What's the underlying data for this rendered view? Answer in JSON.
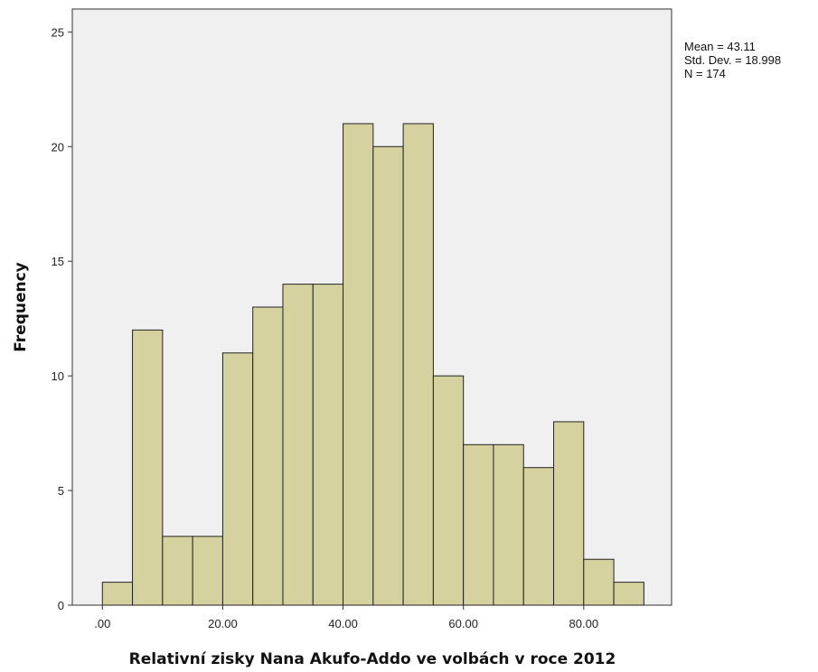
{
  "chart_data": {
    "type": "bar",
    "title": "",
    "xlabel": "Relativní zisky Nana Akufo-Addo ve volbách v roce 2012",
    "ylabel": "Frequency",
    "bin_width": 5,
    "bins": [
      {
        "from": 0,
        "to": 5,
        "count": 1
      },
      {
        "from": 5,
        "to": 10,
        "count": 12
      },
      {
        "from": 10,
        "to": 15,
        "count": 3
      },
      {
        "from": 15,
        "to": 20,
        "count": 3
      },
      {
        "from": 20,
        "to": 25,
        "count": 11
      },
      {
        "from": 25,
        "to": 30,
        "count": 13
      },
      {
        "from": 30,
        "to": 35,
        "count": 14
      },
      {
        "from": 35,
        "to": 40,
        "count": 14
      },
      {
        "from": 40,
        "to": 45,
        "count": 21
      },
      {
        "from": 45,
        "to": 50,
        "count": 20
      },
      {
        "from": 50,
        "to": 55,
        "count": 21
      },
      {
        "from": 55,
        "to": 60,
        "count": 10
      },
      {
        "from": 60,
        "to": 65,
        "count": 7
      },
      {
        "from": 65,
        "to": 70,
        "count": 7
      },
      {
        "from": 70,
        "to": 75,
        "count": 6
      },
      {
        "from": 75,
        "to": 80,
        "count": 8
      },
      {
        "from": 80,
        "to": 85,
        "count": 2
      },
      {
        "from": 85,
        "to": 90,
        "count": 1
      }
    ],
    "xlim": [
      -5.0,
      94.6
    ],
    "ylim": [
      0,
      26
    ],
    "x_ticks": [
      {
        "value": 0,
        "label": ".00"
      },
      {
        "value": 20,
        "label": "20.00"
      },
      {
        "value": 40,
        "label": "40.00"
      },
      {
        "value": 60,
        "label": "60.00"
      },
      {
        "value": 80,
        "label": "80.00"
      }
    ],
    "y_ticks": [
      {
        "value": 0,
        "label": "0"
      },
      {
        "value": 5,
        "label": "5"
      },
      {
        "value": 10,
        "label": "10"
      },
      {
        "value": 15,
        "label": "15"
      },
      {
        "value": 20,
        "label": "20"
      },
      {
        "value": 25,
        "label": "25"
      }
    ],
    "stats": [
      "Mean = 43.11",
      "Std. Dev. = 18.998",
      "N = 174"
    ],
    "grid": false,
    "legend": "none",
    "colors": {
      "bar_fill": "#d6d2a0",
      "bar_stroke": "#222222",
      "plot_background": "#f0f0f0"
    }
  }
}
